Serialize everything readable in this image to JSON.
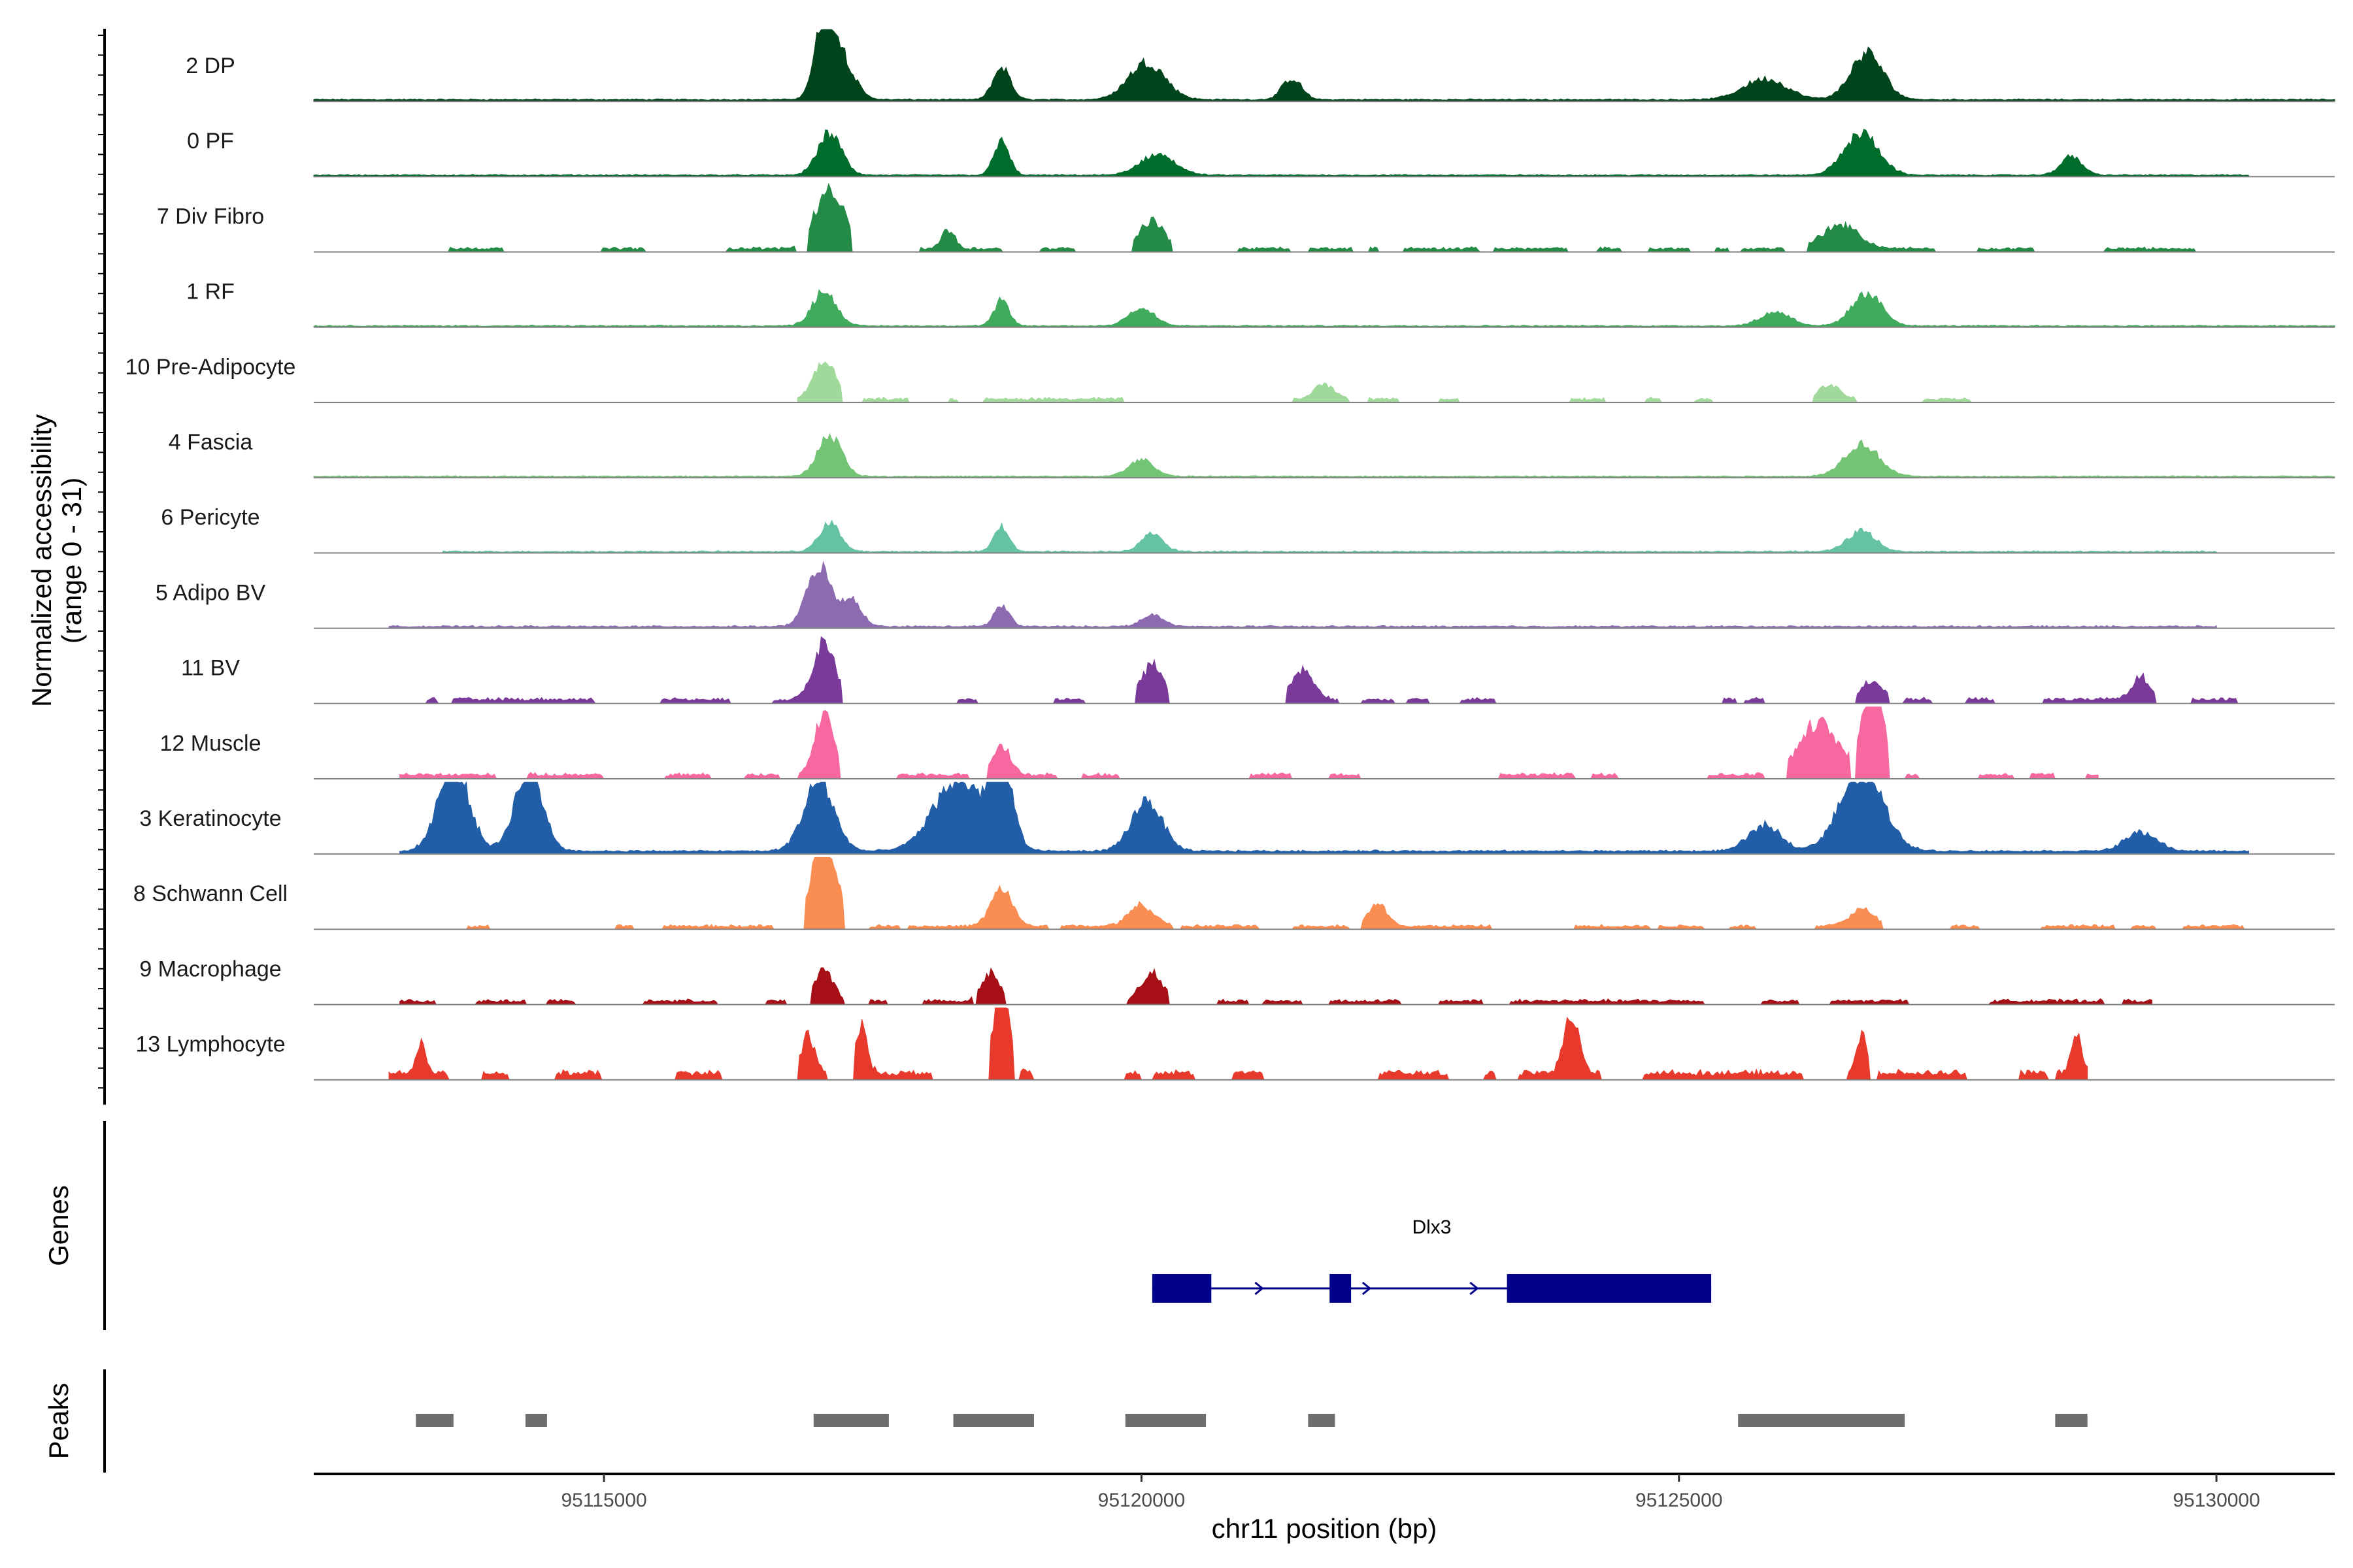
{
  "chart_data": {
    "type": "area",
    "title": "",
    "chromosome": "chr11",
    "xlabel": "chr11 position (bp)",
    "ylabel_line1": "Normalized accessibility",
    "ylabel_line2": "(range 0 - 31)",
    "y_range": [
      0,
      31
    ],
    "xlim": [
      95112300,
      95131100
    ],
    "x_ticks": [
      95115000,
      95120000,
      95125000,
      95130000
    ],
    "x_tick_labels": [
      "95115000",
      "95120000",
      "95125000",
      "95130000"
    ],
    "panel_titles": {
      "genes": "Genes",
      "peaks": "Peaks"
    },
    "baseline_color": "#808080",
    "tracks": [
      {
        "label": "2 DP",
        "color": "#00441b",
        "start": 95112300,
        "end": 95131100,
        "floor": 0.6,
        "jitter": 0.2,
        "gaps": false,
        "peaks": [
          [
            95117050,
            90,
            30
          ],
          [
            95117200,
            120,
            18
          ],
          [
            95118700,
            80,
            14
          ],
          [
            95120050,
            170,
            16
          ],
          [
            95121400,
            90,
            9
          ],
          [
            95125800,
            200,
            9
          ],
          [
            95126750,
            150,
            20
          ]
        ]
      },
      {
        "label": "0 PF",
        "color": "#006d2c",
        "start": 95112300,
        "end": 95130300,
        "floor": 0.5,
        "jitter": 0.2,
        "gaps": false,
        "peaks": [
          [
            95117100,
            110,
            18
          ],
          [
            95118700,
            70,
            15
          ],
          [
            95120150,
            160,
            9
          ],
          [
            95126700,
            160,
            18
          ],
          [
            95128650,
            100,
            8
          ]
        ]
      },
      {
        "label": "7 Div Fibro",
        "color": "#238b45",
        "start": 95113050,
        "end": 95130000,
        "floor": 1.0,
        "jitter": 0.5,
        "gaps": true,
        "peaks": [
          [
            95117100,
            130,
            26
          ],
          [
            95118200,
            60,
            8
          ],
          [
            95120100,
            110,
            12
          ],
          [
            95126500,
            170,
            10
          ]
        ]
      },
      {
        "label": "1 RF",
        "color": "#41ab5d",
        "start": 95112300,
        "end": 95131100,
        "floor": 0.4,
        "jitter": 0.2,
        "gaps": false,
        "peaks": [
          [
            95117050,
            110,
            15
          ],
          [
            95118700,
            70,
            11
          ],
          [
            95120000,
            120,
            8
          ],
          [
            95125900,
            140,
            6
          ],
          [
            95126750,
            140,
            14
          ]
        ]
      },
      {
        "label": "10 Pre-Adipocyte",
        "color": "#a1d99b",
        "start": 95116800,
        "end": 95128200,
        "floor": 1.0,
        "jitter": 0.5,
        "gaps": true,
        "peaks": [
          [
            95117050,
            100,
            16
          ],
          [
            95121700,
            100,
            6
          ],
          [
            95126400,
            100,
            6
          ]
        ]
      },
      {
        "label": "4 Fascia",
        "color": "#74c476",
        "start": 95112300,
        "end": 95131100,
        "floor": 0.4,
        "jitter": 0.2,
        "gaps": false,
        "peaks": [
          [
            95117100,
            110,
            18
          ],
          [
            95120000,
            120,
            7
          ],
          [
            95126700,
            160,
            14
          ]
        ]
      },
      {
        "label": "6 Pericyte",
        "color": "#66c2a4",
        "start": 95113500,
        "end": 95130000,
        "floor": 0.4,
        "jitter": 0.25,
        "gaps": false,
        "peaks": [
          [
            95117100,
            100,
            12
          ],
          [
            95118700,
            70,
            11
          ],
          [
            95120100,
            100,
            8
          ],
          [
            95126700,
            130,
            9
          ]
        ]
      },
      {
        "label": "5 Adipo BV",
        "color": "#8c6bb1",
        "start": 95113000,
        "end": 95130000,
        "floor": 0.5,
        "jitter": 0.3,
        "gaps": false,
        "peaks": [
          [
            95117000,
            110,
            26
          ],
          [
            95117300,
            90,
            12
          ],
          [
            95118700,
            70,
            9
          ],
          [
            95120100,
            100,
            5
          ]
        ]
      },
      {
        "label": "11 BV",
        "color": "#7a3a9a",
        "start": 95113100,
        "end": 95130300,
        "floor": 1.2,
        "jitter": 0.6,
        "gaps": true,
        "peaks": [
          [
            95117050,
            100,
            25
          ],
          [
            95120100,
            100,
            15
          ],
          [
            95121500,
            100,
            12
          ],
          [
            95126800,
            100,
            8
          ],
          [
            95129300,
            80,
            10
          ]
        ]
      },
      {
        "label": "12 Muscle",
        "color": "#f768a1",
        "start": 95113100,
        "end": 95128900,
        "floor": 1.2,
        "jitter": 0.6,
        "gaps": true,
        "peaks": [
          [
            95117050,
            90,
            25
          ],
          [
            95118700,
            80,
            12
          ],
          [
            95126300,
            180,
            22
          ],
          [
            95126800,
            90,
            45
          ]
        ]
      },
      {
        "label": "3 Keratinocyte",
        "color": "#225ea8",
        "start": 95113100,
        "end": 95130300,
        "floor": 1.0,
        "jitter": 0.3,
        "gaps": false,
        "peaks": [
          [
            95113600,
            140,
            38
          ],
          [
            95114300,
            130,
            35
          ],
          [
            95117000,
            140,
            30
          ],
          [
            95118300,
            230,
            31
          ],
          [
            95118700,
            100,
            35
          ],
          [
            95120050,
            140,
            22
          ],
          [
            95125800,
            150,
            11
          ],
          [
            95126700,
            200,
            35
          ],
          [
            95129300,
            150,
            8
          ]
        ]
      },
      {
        "label": "8 Schwann Cell",
        "color": "#f98d52",
        "start": 95113500,
        "end": 95130300,
        "floor": 0.9,
        "jitter": 0.5,
        "gaps": true,
        "peaks": [
          [
            95117050,
            110,
            40
          ],
          [
            95118700,
            100,
            16
          ],
          [
            95120000,
            120,
            9
          ],
          [
            95122200,
            90,
            9
          ],
          [
            95126700,
            120,
            7
          ]
        ]
      },
      {
        "label": "9 Macrophage",
        "color": "#a50f15",
        "start": 95113100,
        "end": 95129400,
        "floor": 1.0,
        "jitter": 0.6,
        "gaps": true,
        "peaks": [
          [
            95117050,
            80,
            14
          ],
          [
            95118600,
            80,
            12
          ],
          [
            95120100,
            100,
            12
          ]
        ]
      },
      {
        "label": "13 Lymphocyte",
        "color": "#e83a2c",
        "start": 95113000,
        "end": 95128800,
        "floor": 2.0,
        "jitter": 1.0,
        "gaps": true,
        "peaks": [
          [
            95113300,
            40,
            14
          ],
          [
            95116900,
            60,
            16
          ],
          [
            95117400,
            50,
            22
          ],
          [
            95118700,
            70,
            40
          ],
          [
            95124000,
            70,
            25
          ],
          [
            95126700,
            50,
            16
          ],
          [
            95128700,
            50,
            16
          ]
        ]
      }
    ],
    "genes": [
      {
        "name": "Dlx3",
        "strand": "+",
        "start": 95120100,
        "end": 95125300,
        "color": "#00008b",
        "exons": [
          [
            95120100,
            95120650
          ],
          [
            95121750,
            95121950
          ],
          [
            95123400,
            95125300
          ]
        ],
        "arrow_positions": [
          95120150,
          95121100,
          95122100,
          95123100
        ]
      }
    ],
    "peaks": [
      [
        95113250,
        95113600
      ],
      [
        95114270,
        95114470
      ],
      [
        95116950,
        95117650
      ],
      [
        95118250,
        95119000
      ],
      [
        95119850,
        95120600
      ],
      [
        95121550,
        95121800
      ],
      [
        95125550,
        95127100
      ],
      [
        95128500,
        95128800
      ]
    ],
    "peak_color": "#6e6e6e"
  }
}
